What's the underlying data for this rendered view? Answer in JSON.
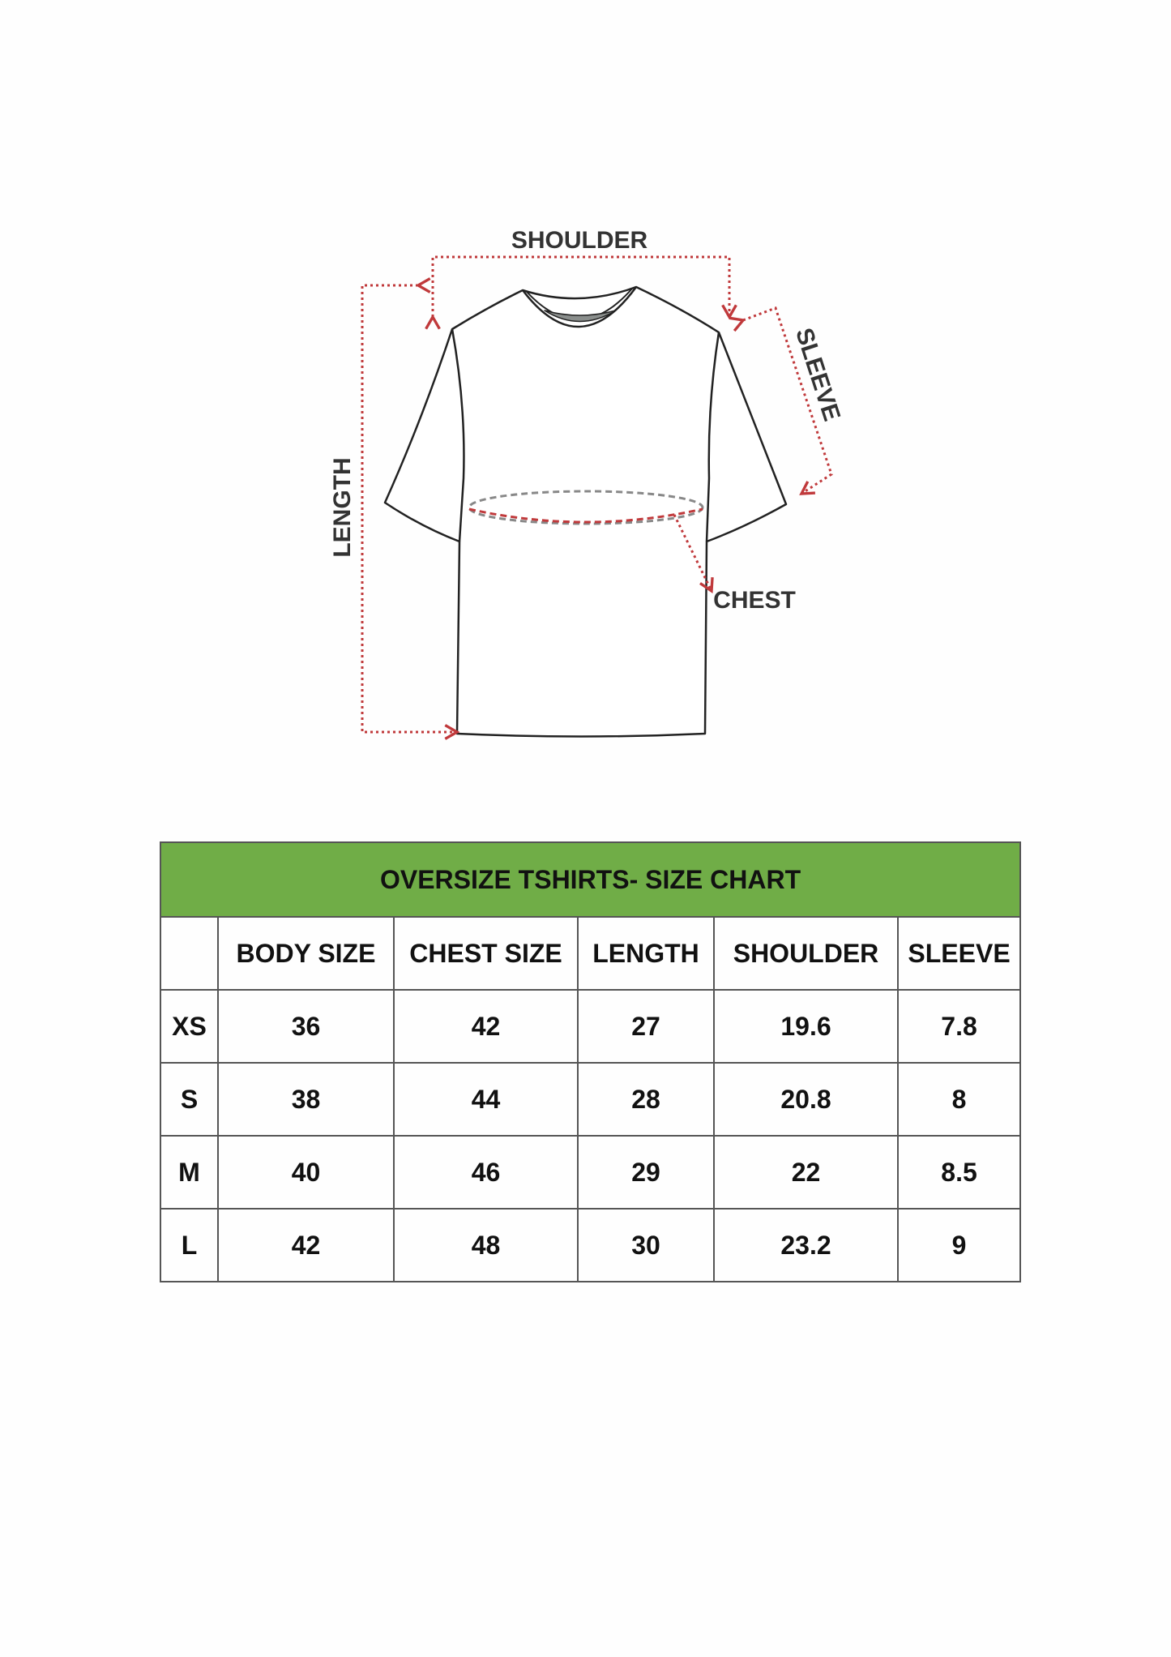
{
  "diagram": {
    "labels": {
      "shoulder": "SHOULDER",
      "length": "LENGTH",
      "sleeve": "SLEEVE",
      "chest": "CHEST"
    },
    "arrow_color": "#c0393b"
  },
  "size_chart": {
    "title": "OVERSIZE TSHIRTS- SIZE CHART",
    "header_color": "#70ad47",
    "columns": [
      "",
      "BODY SIZE",
      "CHEST SIZE",
      "LENGTH",
      "SHOULDER",
      "SLEEVE"
    ],
    "rows": [
      [
        "XS",
        "36",
        "42",
        "27",
        "19.6",
        "7.8"
      ],
      [
        "S",
        "38",
        "44",
        "28",
        "20.8",
        "8"
      ],
      [
        "M",
        "40",
        "46",
        "29",
        "22",
        "8.5"
      ],
      [
        "L",
        "42",
        "48",
        "30",
        "23.2",
        "9"
      ]
    ]
  }
}
